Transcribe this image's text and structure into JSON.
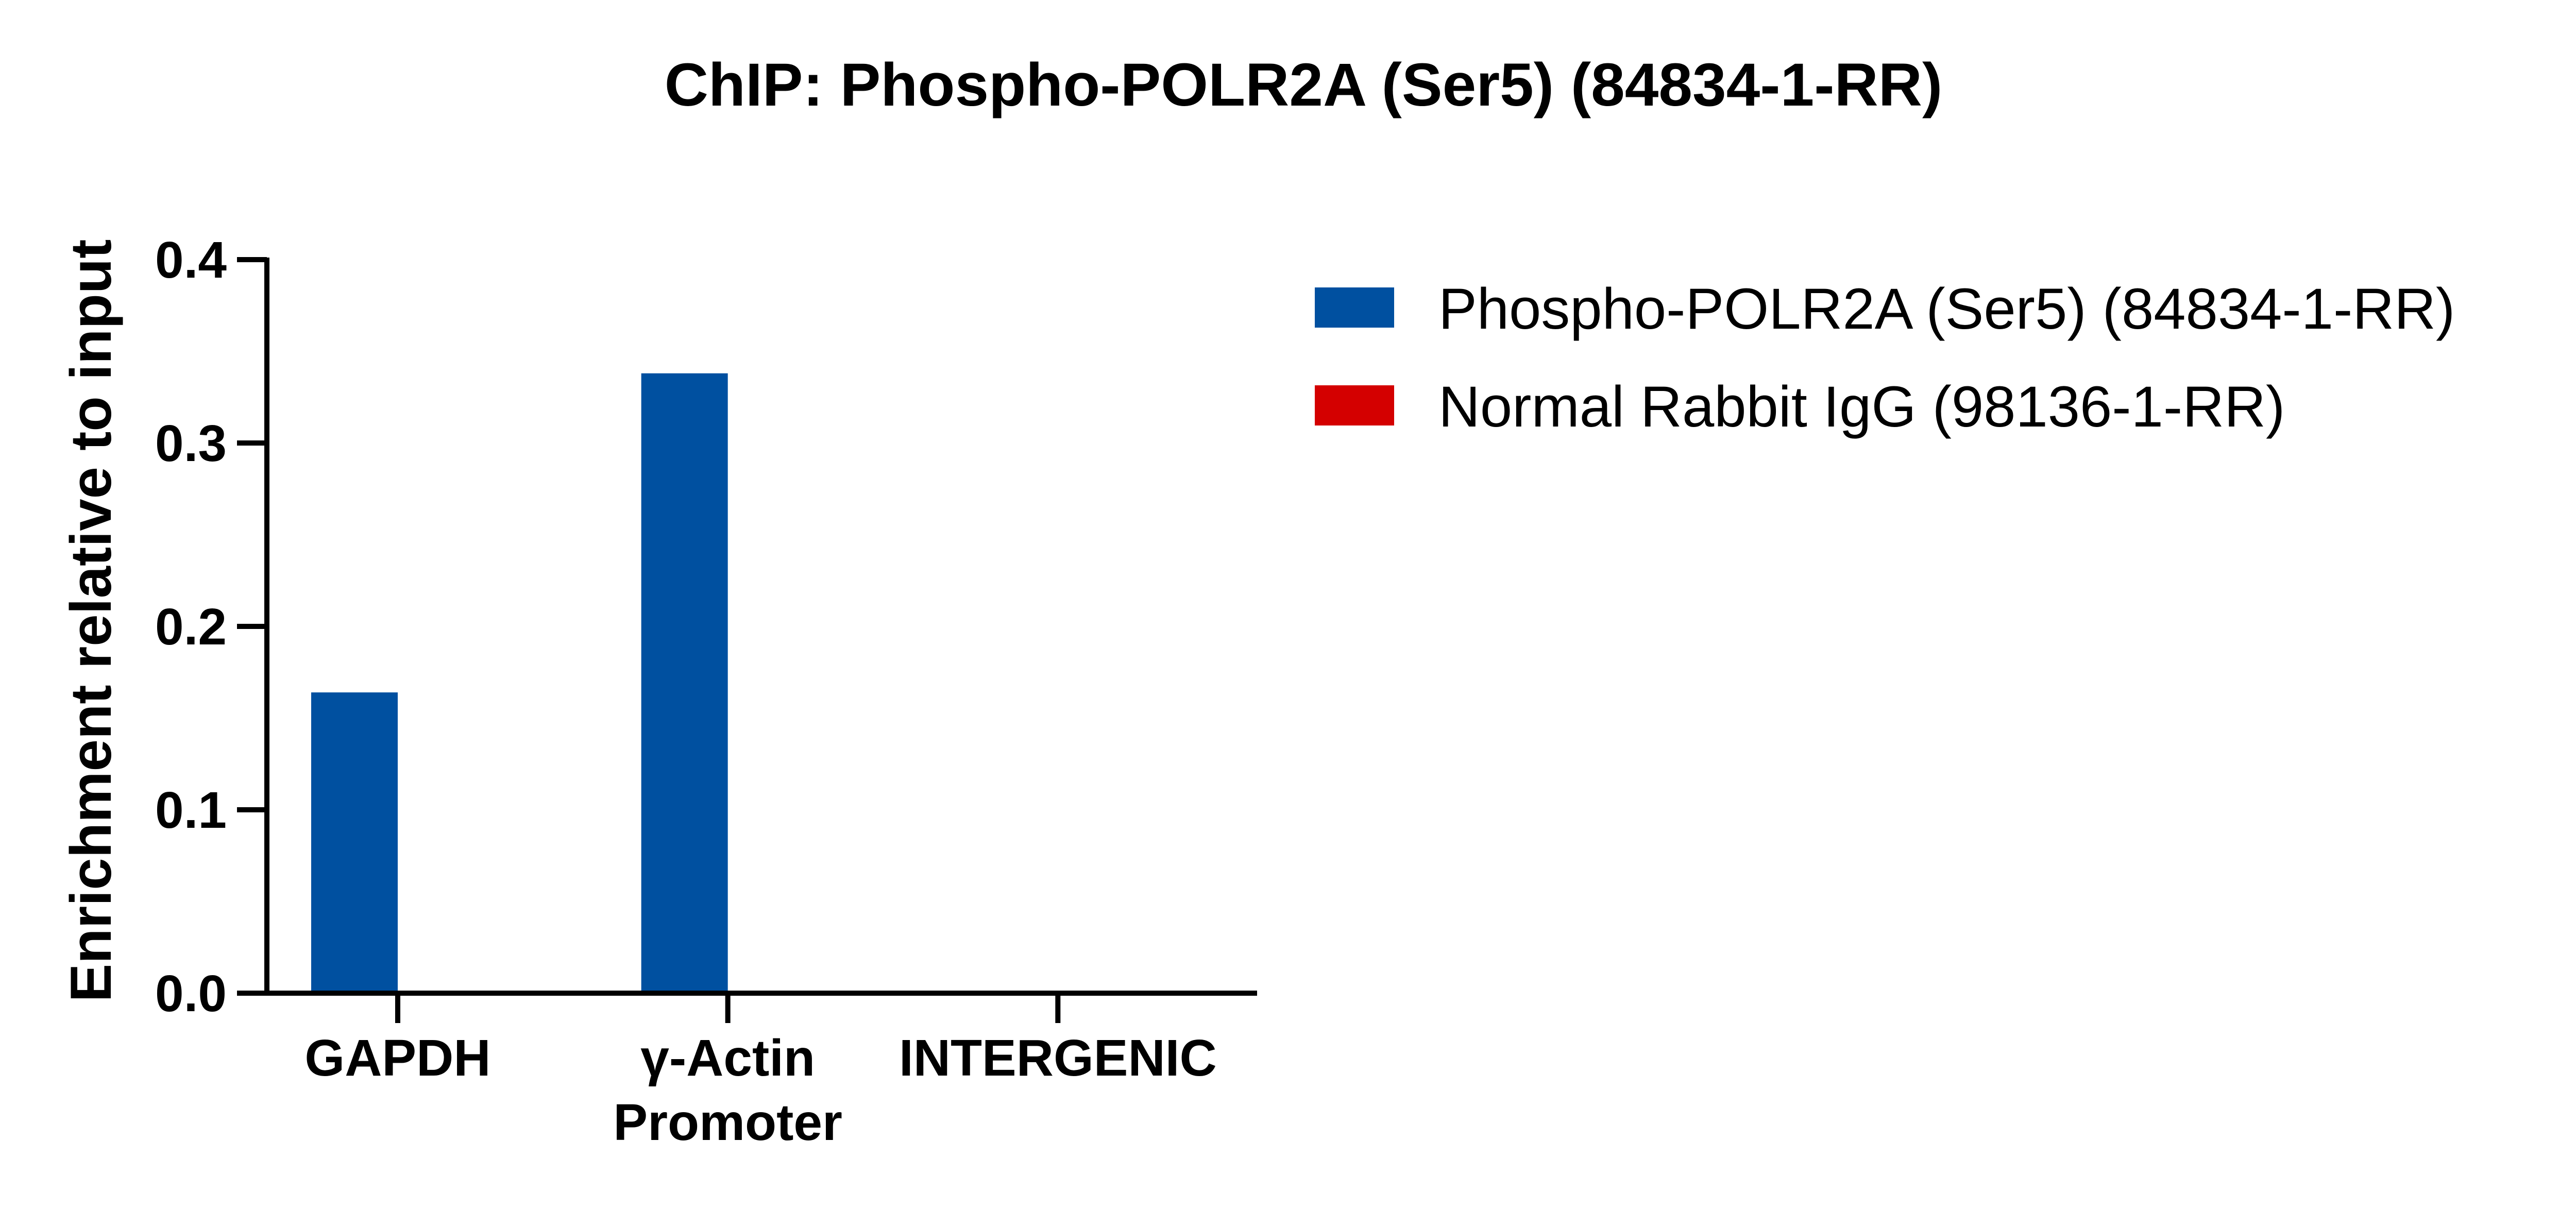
{
  "chart_data": {
    "type": "bar",
    "title": "ChIP: Phospho-POLR2A (Ser5) (84834-1-RR)",
    "xlabel": "",
    "ylabel": "Enrichment relative to input",
    "ylim": [
      0,
      0.4
    ],
    "yticks": [
      "0.0",
      "0.1",
      "0.2",
      "0.3",
      "0.4"
    ],
    "categories": [
      [
        "GAPDH"
      ],
      [
        "γ-Actin",
        "Promoter"
      ],
      [
        "INTERGENIC"
      ]
    ],
    "series": [
      {
        "name": "Phospho-POLR2A (Ser5) (84834-1-RR)",
        "color": "#0050A0",
        "values": [
          0.164,
          0.338,
          0.0
        ]
      },
      {
        "name": "Normal Rabbit IgG (98136-1-RR)",
        "color": "#D40000",
        "values": [
          0.0,
          0.0,
          0.0
        ]
      }
    ],
    "grid": false,
    "legend_position": "top-right"
  }
}
